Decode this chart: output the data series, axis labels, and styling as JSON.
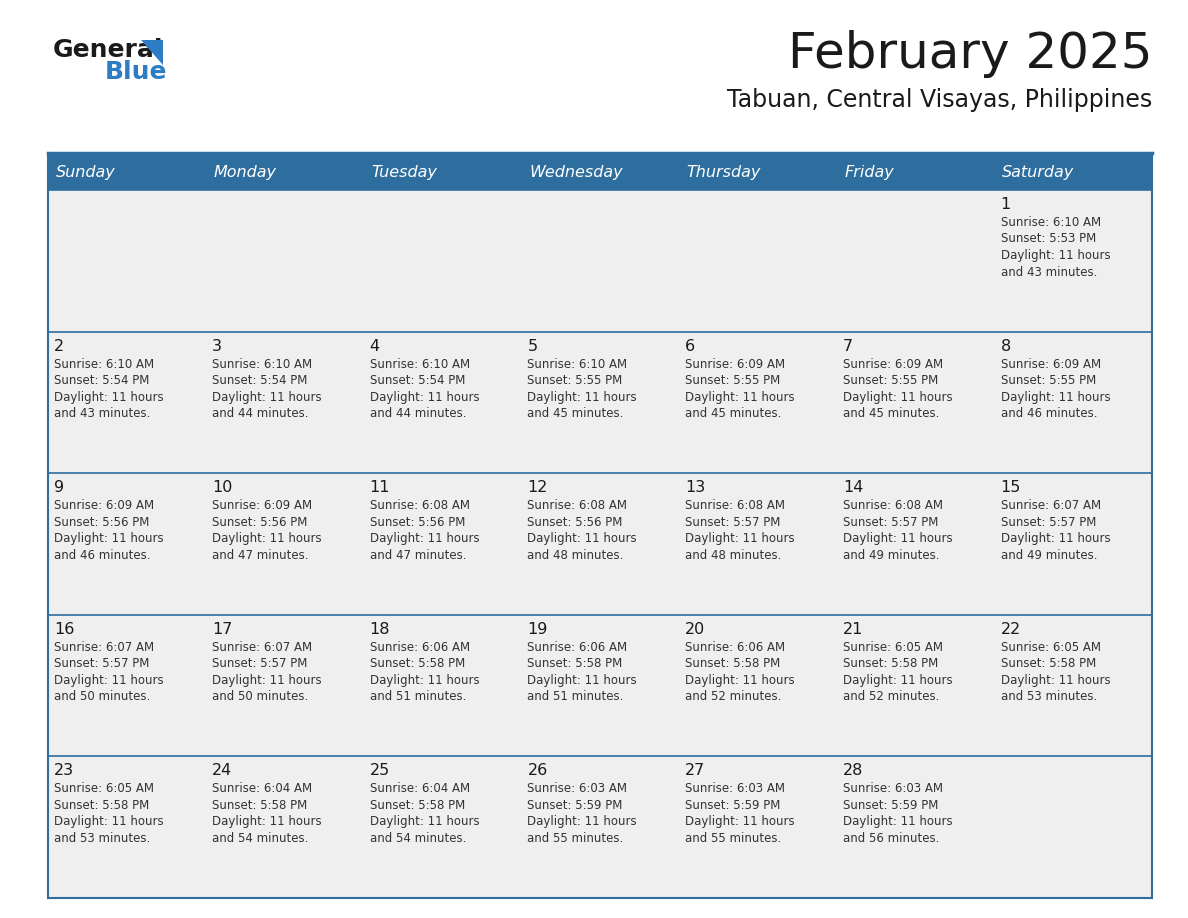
{
  "title": "February 2025",
  "subtitle": "Tabuan, Central Visayas, Philippines",
  "days_of_week": [
    "Sunday",
    "Monday",
    "Tuesday",
    "Wednesday",
    "Thursday",
    "Friday",
    "Saturday"
  ],
  "header_bg": "#2E6E9E",
  "header_text": "#FFFFFF",
  "cell_bg": "#EFEFEF",
  "cell_bg_white": "#FFFFFF",
  "border_color": "#2E6E9E",
  "text_color": "#333333",
  "day_num_color": "#1a1a1a",
  "logo_general_color": "#1a1a1a",
  "logo_blue_color": "#2E7DC4",
  "calendar": [
    [
      {
        "day": null,
        "sunrise": null,
        "sunset": null,
        "daylight": null
      },
      {
        "day": null,
        "sunrise": null,
        "sunset": null,
        "daylight": null
      },
      {
        "day": null,
        "sunrise": null,
        "sunset": null,
        "daylight": null
      },
      {
        "day": null,
        "sunrise": null,
        "sunset": null,
        "daylight": null
      },
      {
        "day": null,
        "sunrise": null,
        "sunset": null,
        "daylight": null
      },
      {
        "day": null,
        "sunrise": null,
        "sunset": null,
        "daylight": null
      },
      {
        "day": 1,
        "sunrise": "6:10 AM",
        "sunset": "5:53 PM",
        "daylight": "11 hours and 43 minutes."
      }
    ],
    [
      {
        "day": 2,
        "sunrise": "6:10 AM",
        "sunset": "5:54 PM",
        "daylight": "11 hours and 43 minutes."
      },
      {
        "day": 3,
        "sunrise": "6:10 AM",
        "sunset": "5:54 PM",
        "daylight": "11 hours and 44 minutes."
      },
      {
        "day": 4,
        "sunrise": "6:10 AM",
        "sunset": "5:54 PM",
        "daylight": "11 hours and 44 minutes."
      },
      {
        "day": 5,
        "sunrise": "6:10 AM",
        "sunset": "5:55 PM",
        "daylight": "11 hours and 45 minutes."
      },
      {
        "day": 6,
        "sunrise": "6:09 AM",
        "sunset": "5:55 PM",
        "daylight": "11 hours and 45 minutes."
      },
      {
        "day": 7,
        "sunrise": "6:09 AM",
        "sunset": "5:55 PM",
        "daylight": "11 hours and 45 minutes."
      },
      {
        "day": 8,
        "sunrise": "6:09 AM",
        "sunset": "5:55 PM",
        "daylight": "11 hours and 46 minutes."
      }
    ],
    [
      {
        "day": 9,
        "sunrise": "6:09 AM",
        "sunset": "5:56 PM",
        "daylight": "11 hours and 46 minutes."
      },
      {
        "day": 10,
        "sunrise": "6:09 AM",
        "sunset": "5:56 PM",
        "daylight": "11 hours and 47 minutes."
      },
      {
        "day": 11,
        "sunrise": "6:08 AM",
        "sunset": "5:56 PM",
        "daylight": "11 hours and 47 minutes."
      },
      {
        "day": 12,
        "sunrise": "6:08 AM",
        "sunset": "5:56 PM",
        "daylight": "11 hours and 48 minutes."
      },
      {
        "day": 13,
        "sunrise": "6:08 AM",
        "sunset": "5:57 PM",
        "daylight": "11 hours and 48 minutes."
      },
      {
        "day": 14,
        "sunrise": "6:08 AM",
        "sunset": "5:57 PM",
        "daylight": "11 hours and 49 minutes."
      },
      {
        "day": 15,
        "sunrise": "6:07 AM",
        "sunset": "5:57 PM",
        "daylight": "11 hours and 49 minutes."
      }
    ],
    [
      {
        "day": 16,
        "sunrise": "6:07 AM",
        "sunset": "5:57 PM",
        "daylight": "11 hours and 50 minutes."
      },
      {
        "day": 17,
        "sunrise": "6:07 AM",
        "sunset": "5:57 PM",
        "daylight": "11 hours and 50 minutes."
      },
      {
        "day": 18,
        "sunrise": "6:06 AM",
        "sunset": "5:58 PM",
        "daylight": "11 hours and 51 minutes."
      },
      {
        "day": 19,
        "sunrise": "6:06 AM",
        "sunset": "5:58 PM",
        "daylight": "11 hours and 51 minutes."
      },
      {
        "day": 20,
        "sunrise": "6:06 AM",
        "sunset": "5:58 PM",
        "daylight": "11 hours and 52 minutes."
      },
      {
        "day": 21,
        "sunrise": "6:05 AM",
        "sunset": "5:58 PM",
        "daylight": "11 hours and 52 minutes."
      },
      {
        "day": 22,
        "sunrise": "6:05 AM",
        "sunset": "5:58 PM",
        "daylight": "11 hours and 53 minutes."
      }
    ],
    [
      {
        "day": 23,
        "sunrise": "6:05 AM",
        "sunset": "5:58 PM",
        "daylight": "11 hours and 53 minutes."
      },
      {
        "day": 24,
        "sunrise": "6:04 AM",
        "sunset": "5:58 PM",
        "daylight": "11 hours and 54 minutes."
      },
      {
        "day": 25,
        "sunrise": "6:04 AM",
        "sunset": "5:58 PM",
        "daylight": "11 hours and 54 minutes."
      },
      {
        "day": 26,
        "sunrise": "6:03 AM",
        "sunset": "5:59 PM",
        "daylight": "11 hours and 55 minutes."
      },
      {
        "day": 27,
        "sunrise": "6:03 AM",
        "sunset": "5:59 PM",
        "daylight": "11 hours and 55 minutes."
      },
      {
        "day": 28,
        "sunrise": "6:03 AM",
        "sunset": "5:59 PM",
        "daylight": "11 hours and 56 minutes."
      },
      {
        "day": null,
        "sunrise": null,
        "sunset": null,
        "daylight": null
      }
    ]
  ]
}
